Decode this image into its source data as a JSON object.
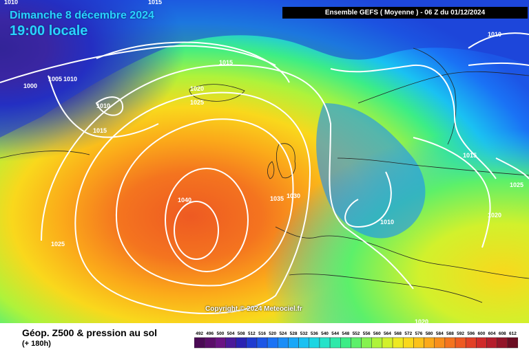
{
  "header": {
    "date": "Dimanche 8 décembre 2024",
    "time": "19:00 locale",
    "run": "Ensemble GEFS  ( Moyenne )  -  06 Z du 01/12/2024"
  },
  "footer": {
    "title": "Géop. Z500 & pression au sol",
    "subtitle": "(+ 180h)",
    "copyright": "Copyright © 2024 Meteociel.fr"
  },
  "isobar_labels": [
    "1010",
    "1015",
    "1000",
    "1005",
    "1010",
    "1010",
    "1015",
    "1015",
    "1020",
    "1025",
    "1010",
    "1040",
    "1035",
    "1030",
    "1025",
    "1015",
    "1025",
    "1020",
    "1010",
    "1020"
  ],
  "legend": {
    "values": [
      "492",
      "496",
      "500",
      "504",
      "508",
      "512",
      "516",
      "520",
      "524",
      "528",
      "532",
      "536",
      "540",
      "544",
      "548",
      "552",
      "556",
      "560",
      "564",
      "568",
      "572",
      "576",
      "580",
      "584",
      "588",
      "592",
      "596",
      "600",
      "604",
      "608",
      "612"
    ],
    "colors": [
      "#4b0a55",
      "#5b0e6a",
      "#6a1483",
      "#4b1a9a",
      "#2a22b2",
      "#1f3bd0",
      "#1c56e6",
      "#1a72f5",
      "#1a8df7",
      "#19a7f8",
      "#1ac1f2",
      "#1bd6e2",
      "#26e3c9",
      "#2fe9a9",
      "#3ced86",
      "#5cf06a",
      "#85f24f",
      "#aef33b",
      "#d2f12c",
      "#ede922",
      "#f9d81c",
      "#fbc21a",
      "#fba91a",
      "#f88f1c",
      "#f4741f",
      "#ee5a22",
      "#e24026",
      "#d02a2a",
      "#b51d2c",
      "#931529",
      "#6b0d22"
    ]
  },
  "map_colors": {
    "deep_low": "#4b0a55",
    "ocean_blue": "#1f3bd0",
    "high_center": "#ee5a22"
  }
}
